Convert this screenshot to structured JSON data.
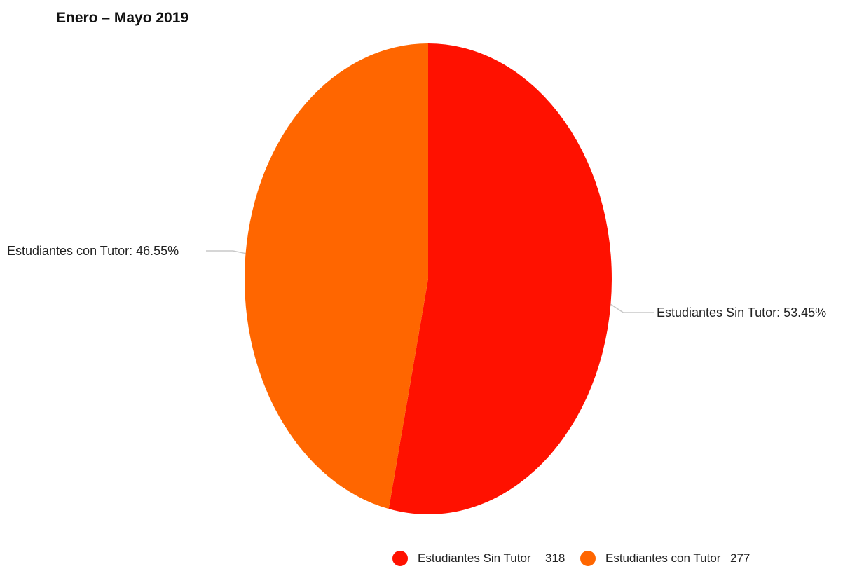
{
  "chart_data": {
    "type": "pie",
    "title": "Enero – Mayo 2019",
    "series": [
      {
        "name": "Estudiantes Sin Tutor",
        "value": 318,
        "percent_label": "Estudiantes Sin Tutor: 53.45%",
        "color": "#ff1100"
      },
      {
        "name": "Estudiantes con Tutor",
        "value": 277,
        "percent_label": "Estudiantes con Tutor: 46.55%",
        "color": "#ff6600"
      }
    ],
    "legend_position": "bottom"
  }
}
